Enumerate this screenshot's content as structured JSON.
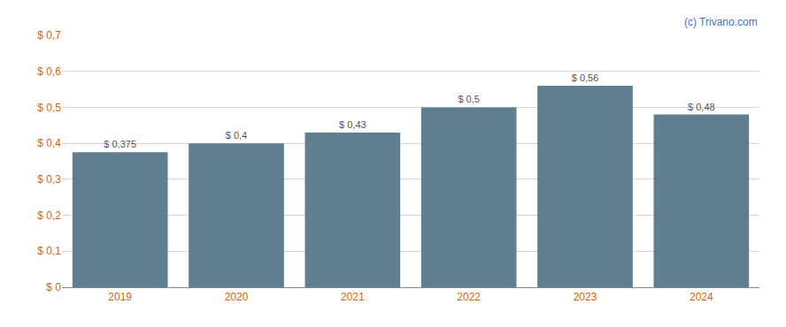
{
  "chart_data": {
    "type": "bar",
    "categories": [
      "2019",
      "2020",
      "2021",
      "2022",
      "2023",
      "2024"
    ],
    "values": [
      0.375,
      0.4,
      0.43,
      0.5,
      0.56,
      0.48
    ],
    "value_labels": [
      "$ 0,375",
      "$ 0,4",
      "$ 0,43",
      "$ 0,5",
      "$ 0,56",
      "$ 0,48"
    ],
    "data_labels": true,
    "color": "#5f7f90",
    "ylim": [
      0,
      0.7
    ],
    "yticks": [
      {
        "value": 0,
        "label": "$ 0"
      },
      {
        "value": 0.1,
        "label": "$ 0,1"
      },
      {
        "value": 0.2,
        "label": "$ 0,2"
      },
      {
        "value": 0.3,
        "label": "$ 0,3"
      },
      {
        "value": 0.4,
        "label": "$ 0,4"
      },
      {
        "value": 0.5,
        "label": "$ 0,5"
      },
      {
        "value": 0.6,
        "label": "$ 0,6"
      },
      {
        "value": 0.7,
        "label": "$ 0,7"
      }
    ],
    "grid": true,
    "annotations": [
      "(c) Trivano.com"
    ]
  }
}
